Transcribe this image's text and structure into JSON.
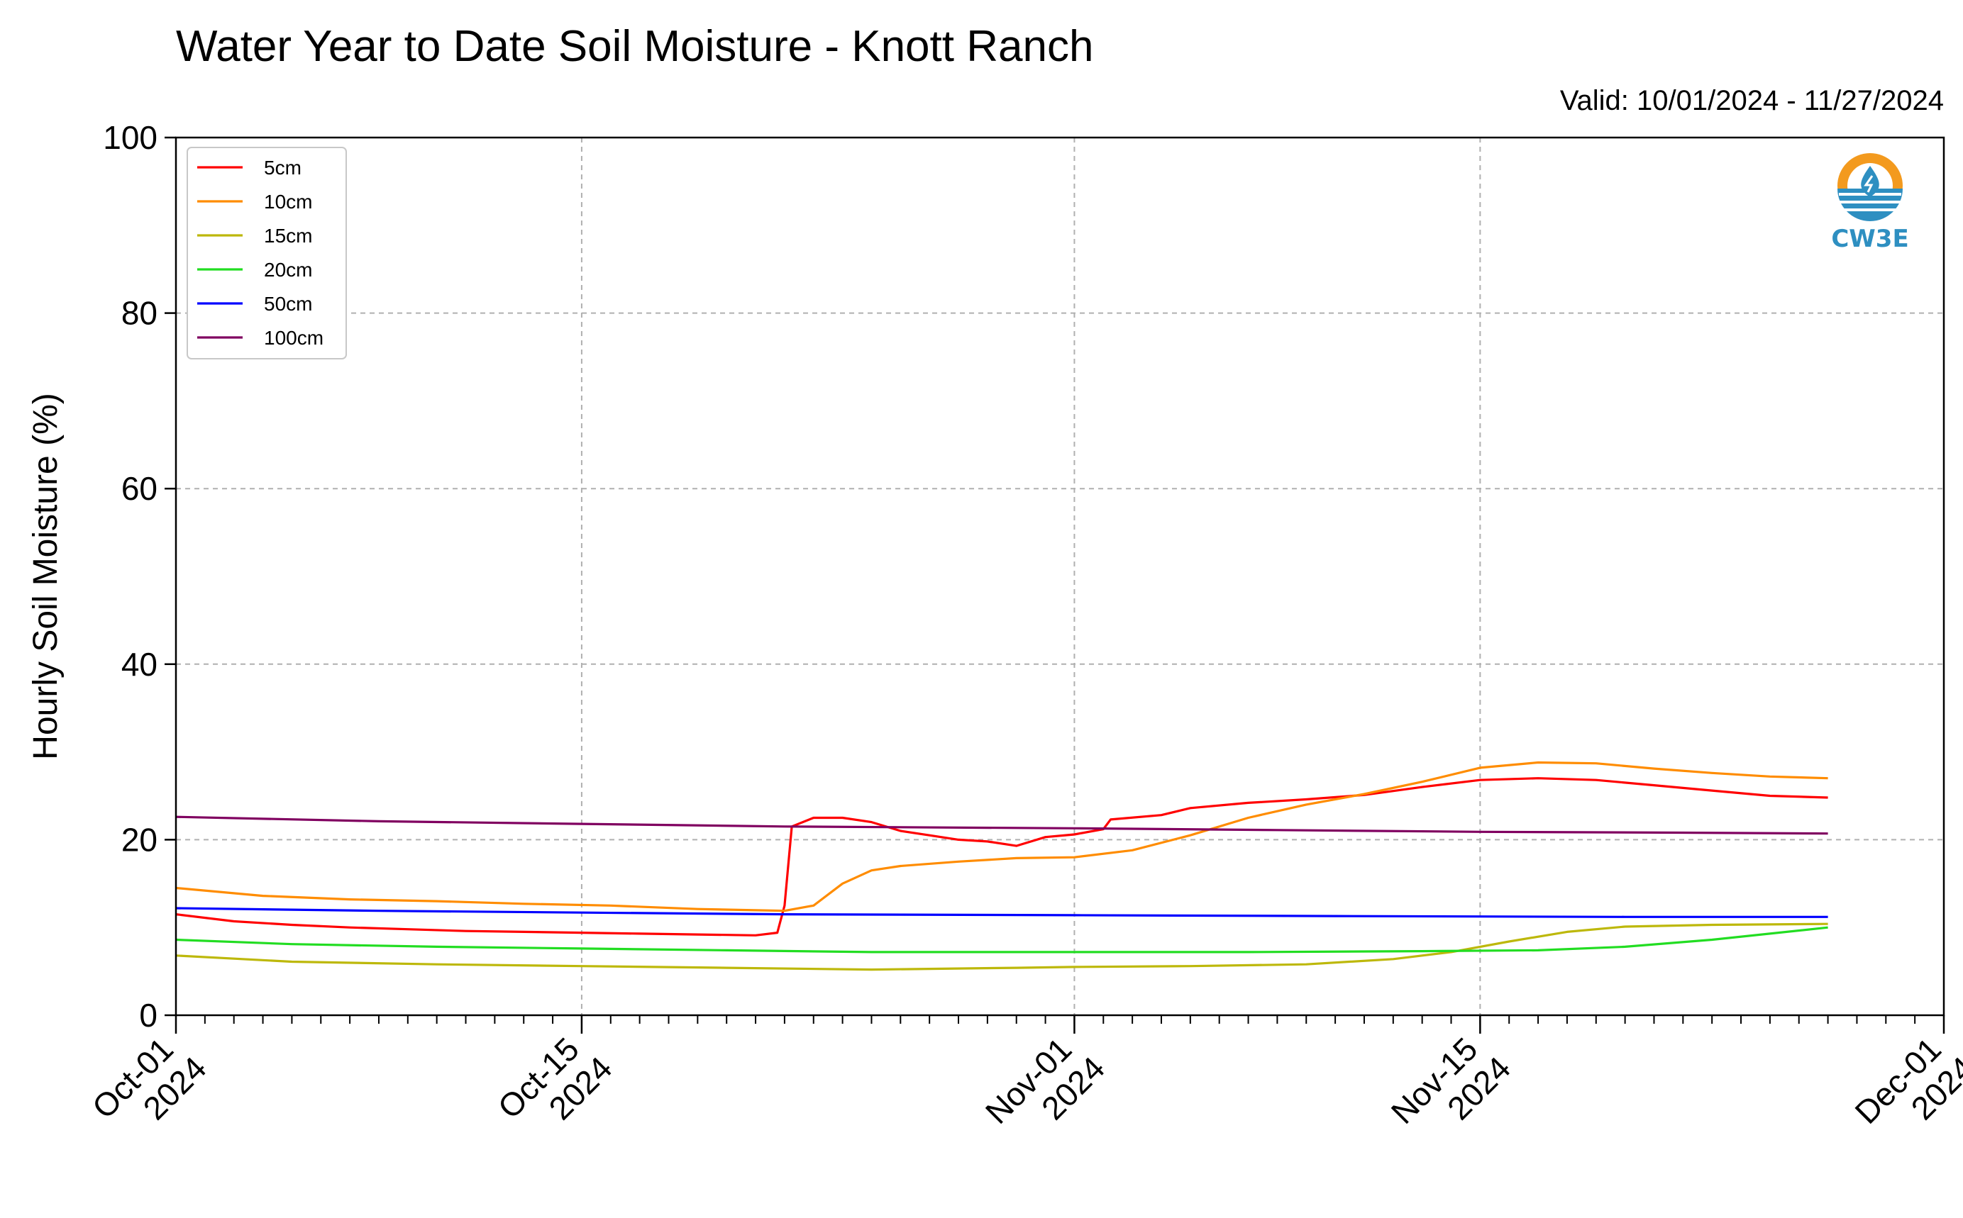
{
  "title": "Water Year to Date Soil Moisture - Knott Ranch",
  "valid_text": "Valid: 10/01/2024 - 11/27/2024",
  "logo": {
    "text": "CW3E",
    "icon": "water-drop-logo-icon",
    "colors": {
      "orange": "#F39A1E",
      "blue": "#2E8FC1"
    }
  },
  "chart_data": {
    "type": "line",
    "ylabel": "Hourly Soil Moisture (%)",
    "xlabel": "",
    "ylim": [
      0,
      100
    ],
    "yticks": [
      0,
      20,
      40,
      60,
      80,
      100
    ],
    "xlim": [
      "2024-10-01",
      "2024-12-01"
    ],
    "xticks": [
      {
        "date": "2024-10-01",
        "label": [
          "Oct-01",
          "2024"
        ]
      },
      {
        "date": "2024-10-15",
        "label": [
          "Oct-15",
          "2024"
        ]
      },
      {
        "date": "2024-11-01",
        "label": [
          "Nov-01",
          "2024"
        ]
      },
      {
        "date": "2024-11-15",
        "label": [
          "Nov-15",
          "2024"
        ]
      },
      {
        "date": "2024-12-01",
        "label": [
          "Dec-01",
          "2024"
        ]
      }
    ],
    "grid": true,
    "legend_position": "upper-left",
    "series": [
      {
        "name": "5cm",
        "color": "#FF0000",
        "points": [
          [
            "2024-10-01",
            11.5
          ],
          [
            "2024-10-03",
            10.7
          ],
          [
            "2024-10-05",
            10.3
          ],
          [
            "2024-10-07",
            10.0
          ],
          [
            "2024-10-09",
            9.8
          ],
          [
            "2024-10-11",
            9.6
          ],
          [
            "2024-10-13",
            9.5
          ],
          [
            "2024-10-15",
            9.4
          ],
          [
            "2024-10-17",
            9.3
          ],
          [
            "2024-10-19",
            9.2
          ],
          [
            "2024-10-21",
            9.1
          ],
          [
            "2024-10-21 18:00",
            9.4
          ],
          [
            "2024-10-22",
            12.5
          ],
          [
            "2024-10-22 06:00",
            21.5
          ],
          [
            "2024-10-23",
            22.5
          ],
          [
            "2024-10-24",
            22.5
          ],
          [
            "2024-10-25",
            22.0
          ],
          [
            "2024-10-26",
            21.0
          ],
          [
            "2024-10-27",
            20.5
          ],
          [
            "2024-10-28",
            20.0
          ],
          [
            "2024-10-29",
            19.8
          ],
          [
            "2024-10-30",
            19.3
          ],
          [
            "2024-10-31",
            20.3
          ],
          [
            "2024-11-01",
            20.6
          ],
          [
            "2024-11-02",
            21.2
          ],
          [
            "2024-11-02 06:00",
            22.3
          ],
          [
            "2024-11-04",
            22.8
          ],
          [
            "2024-11-05",
            23.6
          ],
          [
            "2024-11-07",
            24.2
          ],
          [
            "2024-11-09",
            24.6
          ],
          [
            "2024-11-11",
            25.1
          ],
          [
            "2024-11-13",
            26.0
          ],
          [
            "2024-11-15",
            26.8
          ],
          [
            "2024-11-17",
            27.0
          ],
          [
            "2024-11-19",
            26.8
          ],
          [
            "2024-11-21",
            26.2
          ],
          [
            "2024-11-23",
            25.6
          ],
          [
            "2024-11-25",
            25.0
          ],
          [
            "2024-11-27",
            24.8
          ]
        ]
      },
      {
        "name": "10cm",
        "color": "#FF8C00",
        "points": [
          [
            "2024-10-01",
            14.5
          ],
          [
            "2024-10-04",
            13.6
          ],
          [
            "2024-10-07",
            13.2
          ],
          [
            "2024-10-10",
            13.0
          ],
          [
            "2024-10-13",
            12.7
          ],
          [
            "2024-10-16",
            12.5
          ],
          [
            "2024-10-19",
            12.1
          ],
          [
            "2024-10-22",
            11.9
          ],
          [
            "2024-10-23",
            12.5
          ],
          [
            "2024-10-24",
            15.0
          ],
          [
            "2024-10-25",
            16.5
          ],
          [
            "2024-10-26",
            17.0
          ],
          [
            "2024-10-28",
            17.5
          ],
          [
            "2024-10-30",
            17.9
          ],
          [
            "2024-11-01",
            18.0
          ],
          [
            "2024-11-03",
            18.8
          ],
          [
            "2024-11-05",
            20.5
          ],
          [
            "2024-11-07",
            22.5
          ],
          [
            "2024-11-09",
            24.0
          ],
          [
            "2024-11-11",
            25.2
          ],
          [
            "2024-11-13",
            26.6
          ],
          [
            "2024-11-15",
            28.2
          ],
          [
            "2024-11-17",
            28.8
          ],
          [
            "2024-11-19",
            28.7
          ],
          [
            "2024-11-21",
            28.1
          ],
          [
            "2024-11-23",
            27.6
          ],
          [
            "2024-11-25",
            27.2
          ],
          [
            "2024-11-27",
            27.0
          ]
        ]
      },
      {
        "name": "15cm",
        "color": "#BDB80B",
        "points": [
          [
            "2024-10-01",
            6.8
          ],
          [
            "2024-10-05",
            6.1
          ],
          [
            "2024-10-10",
            5.8
          ],
          [
            "2024-10-15",
            5.6
          ],
          [
            "2024-10-20",
            5.4
          ],
          [
            "2024-10-25",
            5.2
          ],
          [
            "2024-10-30",
            5.4
          ],
          [
            "2024-11-01",
            5.5
          ],
          [
            "2024-11-05",
            5.6
          ],
          [
            "2024-11-09",
            5.8
          ],
          [
            "2024-11-12",
            6.4
          ],
          [
            "2024-11-14",
            7.2
          ],
          [
            "2024-11-16",
            8.4
          ],
          [
            "2024-11-18",
            9.5
          ],
          [
            "2024-11-20",
            10.1
          ],
          [
            "2024-11-23",
            10.3
          ],
          [
            "2024-11-27",
            10.4
          ]
        ]
      },
      {
        "name": "20cm",
        "color": "#22DD22",
        "points": [
          [
            "2024-10-01",
            8.6
          ],
          [
            "2024-10-05",
            8.1
          ],
          [
            "2024-10-10",
            7.8
          ],
          [
            "2024-10-15",
            7.6
          ],
          [
            "2024-10-20",
            7.4
          ],
          [
            "2024-10-25",
            7.2
          ],
          [
            "2024-11-01",
            7.2
          ],
          [
            "2024-11-07",
            7.2
          ],
          [
            "2024-11-13",
            7.3
          ],
          [
            "2024-11-17",
            7.4
          ],
          [
            "2024-11-20",
            7.8
          ],
          [
            "2024-11-23",
            8.6
          ],
          [
            "2024-11-25",
            9.3
          ],
          [
            "2024-11-27",
            10.0
          ]
        ]
      },
      {
        "name": "50cm",
        "color": "#0000FF",
        "points": [
          [
            "2024-10-01",
            12.2
          ],
          [
            "2024-10-08",
            11.9
          ],
          [
            "2024-10-15",
            11.7
          ],
          [
            "2024-10-22",
            11.5
          ],
          [
            "2024-11-01",
            11.4
          ],
          [
            "2024-11-10",
            11.3
          ],
          [
            "2024-11-20",
            11.2
          ],
          [
            "2024-11-27",
            11.2
          ]
        ]
      },
      {
        "name": "100cm",
        "color": "#800060",
        "points": [
          [
            "2024-10-01",
            22.6
          ],
          [
            "2024-10-08",
            22.1
          ],
          [
            "2024-10-15",
            21.8
          ],
          [
            "2024-10-22",
            21.5
          ],
          [
            "2024-11-01",
            21.3
          ],
          [
            "2024-11-08",
            21.1
          ],
          [
            "2024-11-15",
            20.9
          ],
          [
            "2024-11-22",
            20.8
          ],
          [
            "2024-11-27",
            20.7
          ]
        ]
      }
    ]
  }
}
